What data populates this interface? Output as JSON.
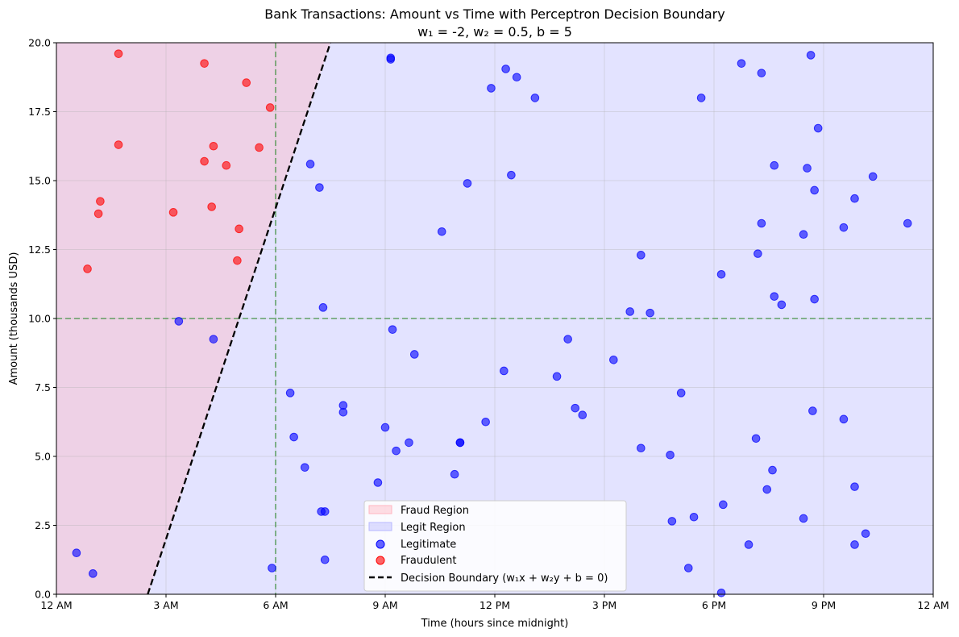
{
  "chart_data": {
    "type": "scatter",
    "title": "Bank Transactions: Amount vs Time with Perceptron Decision Boundary",
    "subtitle": "w₁ = -2, w₂ = 0.5, b = 5",
    "xlabel": "Time (hours since midnight)",
    "ylabel": "Amount (thousands USD)",
    "xlim": [
      0,
      24
    ],
    "ylim": [
      0,
      20
    ],
    "xticks": [
      0,
      3,
      6,
      9,
      12,
      15,
      18,
      21,
      24
    ],
    "xtick_labels": [
      "12 AM",
      "3 AM",
      "6 AM",
      "9 AM",
      "12 PM",
      "3 PM",
      "6 PM",
      "9 PM",
      "12 AM"
    ],
    "yticks": [
      0,
      2.5,
      5,
      7.5,
      10,
      12.5,
      15,
      17.5,
      20
    ],
    "ytick_labels": [
      "0.0",
      "2.5",
      "5.0",
      "7.5",
      "10.0",
      "12.5",
      "15.0",
      "17.5",
      "20.0"
    ],
    "grid": true,
    "reference_lines": {
      "x": 6,
      "y": 10,
      "color": "#2e8b2e"
    },
    "decision_boundary": {
      "w1": -2,
      "w2": 0.5,
      "b": 5,
      "color": "#000000"
    },
    "regions": {
      "fraud": {
        "label": "Fraud Region",
        "color": "#ffb6c1"
      },
      "legit": {
        "label": "Legit Region",
        "color": "#b8b8ff"
      }
    },
    "legend_position": "lower-center",
    "series": [
      {
        "name": "Legitimate",
        "color": "#0000ff",
        "points": [
          [
            0.55,
            1.5
          ],
          [
            1.0,
            0.75
          ],
          [
            3.35,
            9.9
          ],
          [
            4.3,
            9.25
          ],
          [
            5.9,
            0.95
          ],
          [
            6.4,
            7.3
          ],
          [
            6.5,
            5.7
          ],
          [
            6.8,
            4.6
          ],
          [
            6.95,
            15.6
          ],
          [
            7.2,
            14.75
          ],
          [
            7.25,
            3.0
          ],
          [
            7.35,
            3.0
          ],
          [
            7.3,
            10.4
          ],
          [
            7.35,
            1.25
          ],
          [
            7.85,
            6.85
          ],
          [
            7.85,
            6.6
          ],
          [
            8.8,
            4.05
          ],
          [
            9.0,
            6.05
          ],
          [
            9.15,
            19.45
          ],
          [
            9.15,
            19.4
          ],
          [
            9.2,
            9.6
          ],
          [
            9.3,
            5.2
          ],
          [
            9.65,
            5.5
          ],
          [
            9.8,
            8.7
          ],
          [
            10.55,
            13.15
          ],
          [
            10.9,
            4.35
          ],
          [
            11.05,
            5.5
          ],
          [
            11.05,
            5.5
          ],
          [
            11.25,
            14.9
          ],
          [
            11.75,
            6.25
          ],
          [
            11.9,
            18.35
          ],
          [
            12.25,
            8.1
          ],
          [
            12.3,
            19.05
          ],
          [
            12.45,
            15.2
          ],
          [
            12.6,
            18.75
          ],
          [
            13.1,
            18.0
          ],
          [
            13.7,
            7.9
          ],
          [
            14.0,
            9.25
          ],
          [
            14.2,
            6.75
          ],
          [
            14.4,
            6.5
          ],
          [
            15.25,
            8.5
          ],
          [
            15.7,
            10.25
          ],
          [
            16.0,
            12.3
          ],
          [
            16.0,
            5.3
          ],
          [
            16.25,
            10.2
          ],
          [
            16.8,
            5.05
          ],
          [
            16.85,
            2.65
          ],
          [
            17.1,
            7.3
          ],
          [
            17.3,
            0.95
          ],
          [
            17.45,
            2.8
          ],
          [
            17.65,
            18.0
          ],
          [
            18.2,
            11.6
          ],
          [
            18.25,
            3.25
          ],
          [
            18.2,
            0.05
          ],
          [
            18.95,
            1.8
          ],
          [
            18.75,
            19.25
          ],
          [
            19.15,
            5.65
          ],
          [
            19.2,
            12.35
          ],
          [
            19.3,
            13.45
          ],
          [
            19.3,
            18.9
          ],
          [
            19.45,
            3.8
          ],
          [
            19.6,
            4.5
          ],
          [
            19.65,
            15.55
          ],
          [
            19.65,
            10.8
          ],
          [
            19.85,
            10.5
          ],
          [
            20.45,
            13.05
          ],
          [
            20.45,
            2.75
          ],
          [
            20.55,
            15.45
          ],
          [
            20.65,
            19.55
          ],
          [
            20.7,
            6.65
          ],
          [
            20.75,
            14.65
          ],
          [
            20.75,
            10.7
          ],
          [
            20.85,
            16.9
          ],
          [
            21.55,
            13.3
          ],
          [
            21.55,
            6.35
          ],
          [
            21.85,
            14.35
          ],
          [
            21.85,
            3.9
          ],
          [
            21.85,
            1.8
          ],
          [
            22.15,
            2.2
          ],
          [
            22.35,
            15.15
          ],
          [
            23.3,
            13.45
          ]
        ]
      },
      {
        "name": "Fraudulent",
        "color": "#ff0000",
        "points": [
          [
            0.85,
            11.8
          ],
          [
            1.15,
            13.8
          ],
          [
            1.2,
            14.25
          ],
          [
            1.7,
            16.3
          ],
          [
            1.7,
            19.6
          ],
          [
            3.2,
            13.85
          ],
          [
            4.05,
            19.25
          ],
          [
            4.05,
            15.7
          ],
          [
            4.25,
            14.05
          ],
          [
            4.3,
            16.25
          ],
          [
            4.65,
            15.55
          ],
          [
            4.95,
            12.1
          ],
          [
            5.0,
            13.25
          ],
          [
            5.2,
            18.55
          ],
          [
            5.55,
            16.2
          ],
          [
            5.85,
            17.65
          ]
        ]
      }
    ],
    "boundary_label": "Decision Boundary (w₁x + w₂y + b = 0)"
  }
}
